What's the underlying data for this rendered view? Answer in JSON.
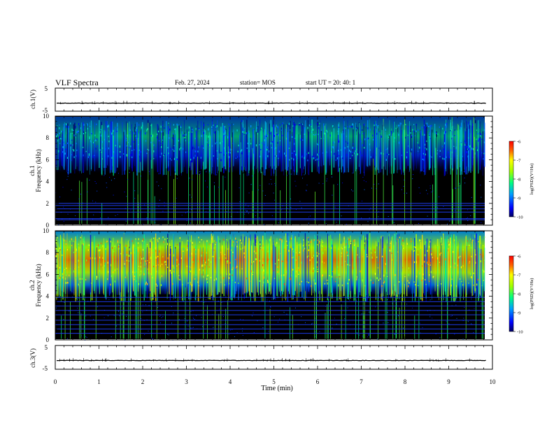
{
  "header": {
    "title": "VLF Spectra",
    "date": "Feb. 27, 2024",
    "station": "station= MOS",
    "start": "start UT =  20: 40: 1"
  },
  "chart_data": [
    {
      "type": "line",
      "panel": "ch1-waveform",
      "ylabel": "ch.1(V)",
      "ylim": [
        -5,
        5
      ],
      "yticks": [
        "5",
        "-5"
      ],
      "xlim": [
        0,
        10
      ],
      "series": [
        {
          "values": [
            -1.5,
            -1.5
          ]
        }
      ]
    },
    {
      "type": "heatmap",
      "panel": "ch1-spectrogram",
      "ylabel": "ch.1",
      "ylabel2": "Frequency (kHz)",
      "ylim": [
        0,
        10
      ],
      "yticks": [
        "0",
        "2",
        "4",
        "6",
        "8",
        "10"
      ],
      "xlim": [
        0,
        9.85
      ],
      "emission_band_khz": [
        5.5,
        9.7
      ],
      "band_peak_log_psd": -8.2,
      "narrowband_lines_khz": [
        0.5,
        0.6,
        1.2,
        1.5,
        1.8,
        2.0
      ],
      "colorbar": {
        "label": "log(PSD)(V²/Hz)",
        "ticks": [
          "-6",
          "-7",
          "-8",
          "-9",
          "-10"
        ],
        "range": [
          -10,
          -6
        ]
      }
    },
    {
      "type": "heatmap",
      "panel": "ch2-spectrogram",
      "ylabel": "ch.2",
      "ylabel2": "Frequency (kHz)",
      "ylim": [
        0,
        10
      ],
      "yticks": [
        "0",
        "2",
        "4",
        "6",
        "8",
        "10"
      ],
      "xlim": [
        0,
        9.85
      ],
      "emission_band_khz": [
        4.5,
        9.8
      ],
      "band_peak_log_psd": -6.8,
      "narrowband_lines_khz": [
        0.6,
        1.0,
        1.4,
        1.8,
        2.3,
        2.7,
        3.1,
        3.5,
        3.9
      ],
      "colorbar": {
        "label": "log(PSD)(V²/Hz)",
        "ticks": [
          "-6",
          "-7",
          "-8",
          "-9",
          "-10"
        ],
        "range": [
          -10,
          -6
        ]
      }
    },
    {
      "type": "line",
      "panel": "ch3-waveform",
      "ylabel": "ch.3(V)",
      "ylim": [
        -5,
        5
      ],
      "yticks": [
        "5",
        "-5"
      ],
      "xlim": [
        0,
        10
      ],
      "series": [
        {
          "values": [
            -1.3,
            -1.3
          ]
        }
      ]
    }
  ],
  "xaxis": {
    "label": "Time (min)",
    "range": [
      0,
      10
    ],
    "ticks": [
      "0",
      "1",
      "2",
      "3",
      "4",
      "5",
      "6",
      "7",
      "8",
      "9",
      "10"
    ]
  }
}
